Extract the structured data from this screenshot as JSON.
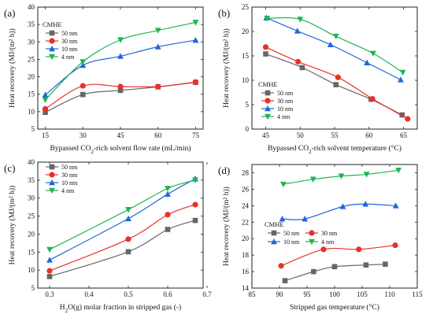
{
  "figure": {
    "panels": [
      "a",
      "b",
      "c",
      "d"
    ]
  },
  "chart_data": [
    {
      "panel_label": "(a)",
      "type": "line",
      "xlabel_main": "Bypassed CO",
      "xlabel_sub": "2",
      "xlabel_rest": "-rich solvent flow rate (mL/min)",
      "ylabel": "Heat recovery (MJ/(m² h))",
      "xlim": [
        12,
        78
      ],
      "ylim": [
        5,
        40
      ],
      "xticks": [
        15,
        30,
        45,
        60,
        75
      ],
      "yticks": [
        5,
        10,
        15,
        20,
        25,
        30,
        35,
        40
      ],
      "legend_title": "CMHE",
      "legend_position": "top-left",
      "series": [
        {
          "name": "50 nm",
          "color": "#666666",
          "marker": "square",
          "x": [
            15,
            30,
            45,
            60,
            75
          ],
          "y": [
            9.8,
            14.9,
            16.1,
            17.1,
            18.4
          ]
        },
        {
          "name": "30 nm",
          "color": "#e8312a",
          "marker": "circle",
          "x": [
            15,
            30,
            45,
            60,
            75
          ],
          "y": [
            10.8,
            17.4,
            17.2,
            17.2,
            18.5
          ]
        },
        {
          "name": "10 nm",
          "color": "#2166d8",
          "marker": "triangle-up",
          "x": [
            15,
            30,
            45,
            60,
            75
          ],
          "y": [
            14.8,
            23.3,
            25.9,
            28.6,
            30.5
          ]
        },
        {
          "name": "4 nm",
          "color": "#1db551",
          "marker": "triangle-down",
          "x": [
            15,
            30,
            45,
            60,
            75
          ],
          "y": [
            13.4,
            24.3,
            30.6,
            33.3,
            35.6
          ]
        }
      ]
    },
    {
      "panel_label": "(b)",
      "type": "line",
      "xlabel_main": "Bypassed CO",
      "xlabel_sub": "2",
      "xlabel_rest": "-rich solvent temperature (°C)",
      "ylabel": "Heat recovery (MJ/(m² h))",
      "xlim": [
        43,
        67
      ],
      "ylim": [
        0,
        25
      ],
      "xticks": [
        45,
        50,
        55,
        60,
        65
      ],
      "yticks": [
        0,
        5,
        10,
        15,
        20,
        25
      ],
      "legend_title": "CMHE",
      "legend_position": "bottom-left",
      "series": [
        {
          "name": "50 nm",
          "color": "#666666",
          "marker": "square",
          "x": [
            45,
            50.3,
            55.2,
            60.3,
            64.8
          ],
          "y": [
            15.4,
            12.6,
            9.1,
            6.1,
            2.9
          ]
        },
        {
          "name": "30 nm",
          "color": "#e8312a",
          "marker": "circle",
          "x": [
            45,
            49.7,
            55.5,
            60.5,
            65.6
          ],
          "y": [
            16.8,
            13.8,
            10.6,
            6.2,
            2.1
          ]
        },
        {
          "name": "10 nm",
          "color": "#2166d8",
          "marker": "triangle-up",
          "x": [
            45.1,
            49.6,
            54.4,
            59.7,
            64.6
          ],
          "y": [
            22.8,
            20.1,
            17.3,
            13.6,
            10.1
          ]
        },
        {
          "name": "4 nm",
          "color": "#1db551",
          "marker": "triangle-down",
          "x": [
            45.2,
            50,
            55.2,
            60.6,
            64.9
          ],
          "y": [
            22.7,
            22.5,
            19.0,
            15.5,
            11.6
          ]
        }
      ]
    },
    {
      "panel_label": "(c)",
      "type": "line",
      "xlabel_main": "H",
      "xlabel_sub": "2",
      "xlabel_rest": "O(g) molar fraction in stripped gas (-)",
      "ylabel": "Heat recovery (MJ/(m² h))",
      "xlim": [
        0.27,
        0.69
      ],
      "ylim": [
        5,
        40
      ],
      "xticks": [
        0.3,
        0.4,
        0.5,
        0.6,
        0.7
      ],
      "yticks": [
        5,
        10,
        15,
        20,
        25,
        30,
        35,
        40
      ],
      "legend_title": "",
      "legend_position": "top-left",
      "series": [
        {
          "name": "50 nm",
          "color": "#666666",
          "marker": "square",
          "x": [
            0.3,
            0.5,
            0.6,
            0.67
          ],
          "y": [
            8.2,
            15.1,
            21.3,
            23.8
          ]
        },
        {
          "name": "30 nm",
          "color": "#e8312a",
          "marker": "circle",
          "x": [
            0.3,
            0.5,
            0.6,
            0.67
          ],
          "y": [
            9.8,
            18.6,
            25.4,
            28.2
          ]
        },
        {
          "name": "10 nm",
          "color": "#2166d8",
          "marker": "triangle-up",
          "x": [
            0.3,
            0.5,
            0.6,
            0.67
          ],
          "y": [
            12.8,
            24.3,
            31.1,
            35.4
          ]
        },
        {
          "name": "4 nm",
          "color": "#1db551",
          "marker": "triangle-down",
          "x": [
            0.3,
            0.5,
            0.6,
            0.67
          ],
          "y": [
            15.7,
            26.8,
            32.7,
            35.0
          ]
        }
      ]
    },
    {
      "panel_label": "(d)",
      "type": "line",
      "xlabel_main": "Stripped gas temperature (°C)",
      "xlabel_sub": "",
      "xlabel_rest": "",
      "ylabel": "Heat recovery (MJ/(m² h))",
      "xlim": [
        85,
        115
      ],
      "ylim": [
        14,
        29
      ],
      "xticks": [
        85,
        90,
        95,
        100,
        105,
        110,
        115
      ],
      "yticks": [
        14,
        16,
        18,
        20,
        22,
        24,
        26,
        28
      ],
      "legend_title": "CMHE",
      "legend_position": "center-left",
      "series": [
        {
          "name": "50 nm",
          "color": "#666666",
          "marker": "square",
          "x": [
            91,
            96.2,
            100,
            105.7,
            109.2
          ],
          "y": [
            14.9,
            16.0,
            16.6,
            16.8,
            16.9
          ]
        },
        {
          "name": "30 nm",
          "color": "#e8312a",
          "marker": "circle",
          "x": [
            90.3,
            98,
            104.4,
            111
          ],
          "y": [
            16.7,
            18.7,
            18.7,
            19.2
          ]
        },
        {
          "name": "10 nm",
          "color": "#2166d8",
          "marker": "triangle-up",
          "x": [
            90.5,
            94.6,
            101.5,
            105.6,
            111.1
          ],
          "y": [
            22.4,
            22.4,
            23.9,
            24.2,
            24.0
          ]
        },
        {
          "name": "4 nm",
          "color": "#1db551",
          "marker": "triangle-down",
          "x": [
            90.7,
            96.1,
            101.2,
            105.8,
            111.6
          ],
          "y": [
            26.6,
            27.2,
            27.6,
            27.8,
            28.3
          ]
        }
      ]
    }
  ]
}
